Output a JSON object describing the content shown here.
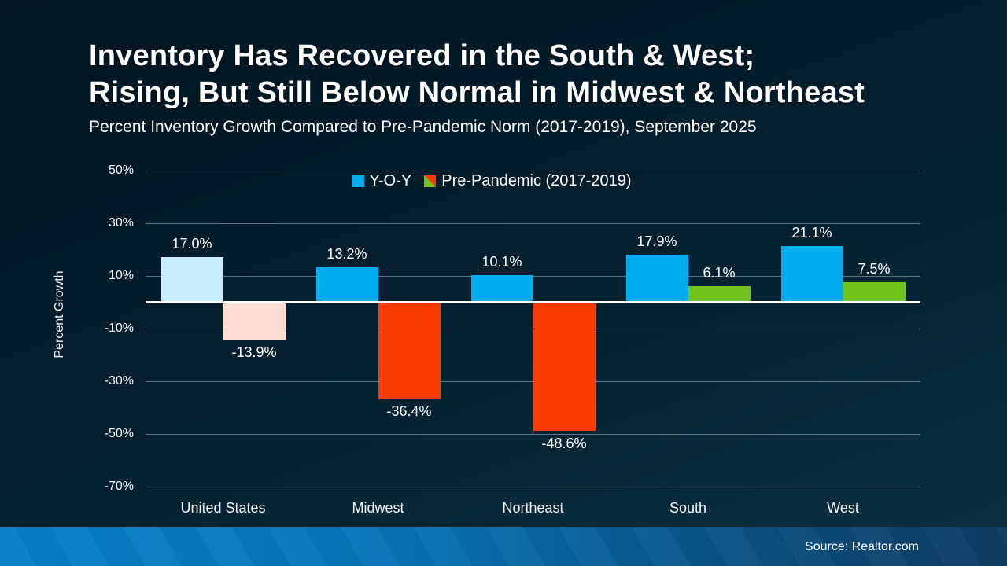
{
  "page": {
    "title_line1": "Inventory Has Recovered in the South & West;",
    "title_line2": "Rising, But Still Below Normal in Midwest & Northeast",
    "subtitle": "Percent Inventory Growth Compared to Pre-Pandemic Norm (2017-2019), September 2025"
  },
  "footer": {
    "source": "Source: Realtor.com"
  },
  "colors": {
    "background_top": "#021520",
    "background_bottom": "#0c3142",
    "yoy_blue": "#00aeef",
    "yoy_blue_muted": "#c9ecfb",
    "pre_pandemic_red": "#fa3c00",
    "pre_pandemic_red_muted": "#fcdcd3",
    "pre_pandemic_green": "#6fc41b",
    "footer_blue": "#0780c8",
    "gridline": "rgba(168,184,194,0.55)"
  },
  "chart_data": {
    "type": "bar",
    "title": "Percent Inventory Growth Compared to Pre-Pandemic Norm (2017-2019), September 2025",
    "categories": [
      "United States",
      "Midwest",
      "Northeast",
      "South",
      "West"
    ],
    "series": [
      {
        "name": "Y-O-Y",
        "values": [
          17.0,
          13.2,
          10.1,
          17.9,
          21.1
        ],
        "labels": [
          "17.0%",
          "13.2%",
          "10.1%",
          "17.9%",
          "21.1%"
        ],
        "colors": [
          "#c9ecfb",
          "#00aeef",
          "#00aeef",
          "#00aeef",
          "#00aeef"
        ]
      },
      {
        "name": "Pre-Pandemic (2017-2019)",
        "values": [
          -13.9,
          -36.4,
          -48.6,
          6.1,
          7.5
        ],
        "labels": [
          "-13.9%",
          "-36.4%",
          "-48.6%",
          "6.1%",
          "7.5%"
        ],
        "colors": [
          "#fcdcd3",
          "#fa3c00",
          "#fa3c00",
          "#6fc41b",
          "#6fc41b"
        ]
      }
    ],
    "xlabel": "",
    "ylabel": "Percent Growth",
    "yticks": [
      50,
      30,
      10,
      -10,
      -30,
      -50,
      -70
    ],
    "ytick_labels": [
      "50%",
      "30%",
      "10%",
      "-10%",
      "-30%",
      "-50%",
      "-70%"
    ],
    "ylim": [
      -75,
      55
    ],
    "grid": true,
    "legend_position": "top-center",
    "legend": [
      {
        "label": "Y-O-Y",
        "color": "#00aeef"
      },
      {
        "label": "Pre-Pandemic (2017-2019)",
        "colors": [
          "#6fc41b",
          "#fa3c00"
        ]
      }
    ]
  }
}
